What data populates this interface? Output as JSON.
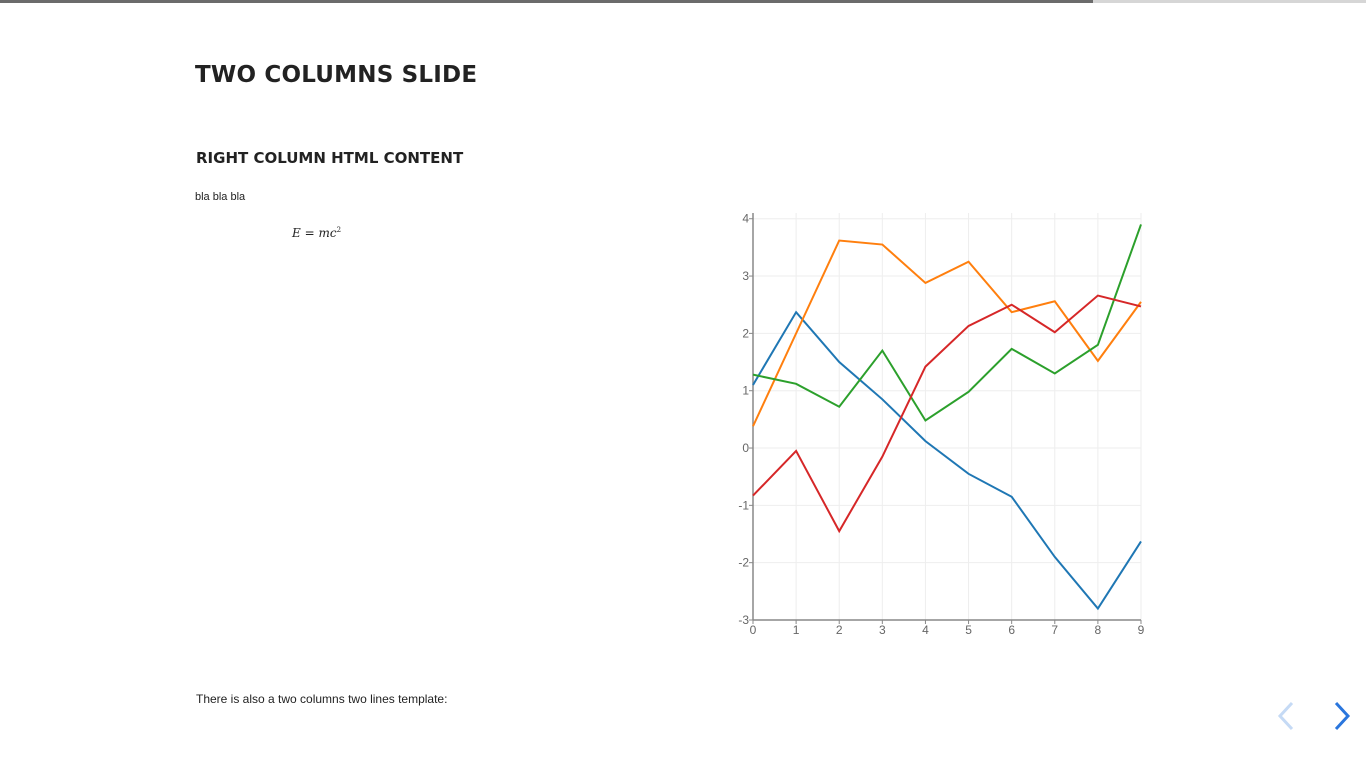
{
  "progress": {
    "fraction": 0.8
  },
  "slide": {
    "title": "TWO COLUMNS SLIDE",
    "subtitle": "RIGHT COLUMN HTML CONTENT",
    "body_text": "bla bla bla",
    "equation": {
      "lhs": "E",
      "rhs_base": "mc",
      "exponent": "2"
    },
    "footer_text": "There is also a two columns two lines template:"
  },
  "navigation": {
    "prev_icon": "chevron-left-icon",
    "next_icon": "chevron-right-icon",
    "prev_color": "#c5daf5",
    "next_color": "#2a76dd"
  },
  "chart_data": {
    "type": "line",
    "x": [
      0,
      1,
      2,
      3,
      4,
      5,
      6,
      7,
      8,
      9
    ],
    "xlim": [
      0,
      9
    ],
    "ylim": [
      -3,
      4.1
    ],
    "x_ticks": [
      "0",
      "1",
      "2",
      "3",
      "4",
      "5",
      "6",
      "7",
      "8",
      "9"
    ],
    "y_ticks": [
      "-3",
      "-2",
      "-1",
      "0",
      "1",
      "2",
      "3",
      "4"
    ],
    "grid": true,
    "series": [
      {
        "color": "#1f77b4",
        "values": [
          1.1,
          2.37,
          1.5,
          0.85,
          0.12,
          -0.45,
          -0.85,
          -1.9,
          -2.8,
          -1.63
        ]
      },
      {
        "color": "#ff7f0e",
        "values": [
          0.38,
          2.0,
          3.62,
          3.55,
          2.88,
          3.25,
          2.37,
          2.56,
          1.52,
          2.55
        ]
      },
      {
        "color": "#2ca02c",
        "values": [
          1.28,
          1.12,
          0.72,
          1.7,
          0.48,
          0.98,
          1.73,
          1.3,
          1.8,
          3.9
        ]
      },
      {
        "color": "#d62728",
        "values": [
          -0.83,
          -0.05,
          -1.45,
          -0.15,
          1.42,
          2.13,
          2.5,
          2.02,
          2.66,
          2.47
        ]
      }
    ]
  }
}
